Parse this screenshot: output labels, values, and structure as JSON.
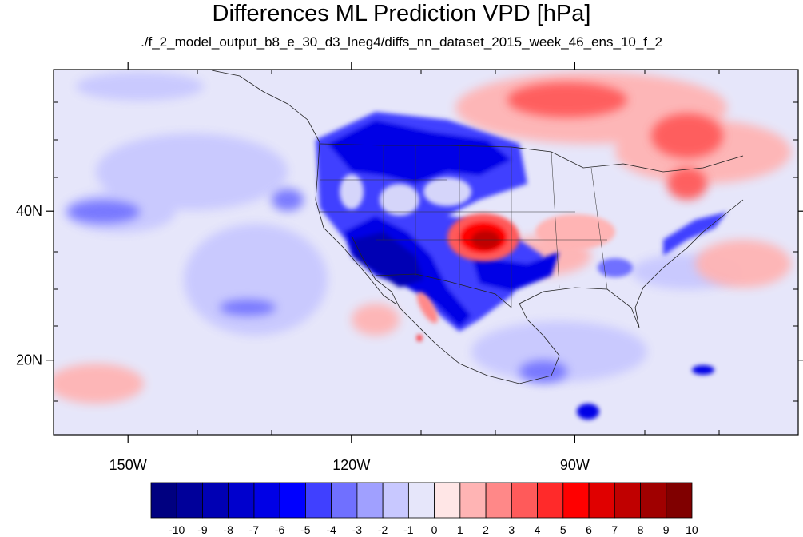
{
  "title": "Differences ML Prediction VPD [hPa]",
  "subtitle": "./f_2_model_output_b8_e_30_d3_lneg4/diffs_nn_dataset_2015_week_46_ens_10_f_2",
  "map": {
    "lon_range": [
      -160,
      -60
    ],
    "lat_range": [
      10,
      59
    ],
    "lon_ticks": [
      {
        "value": -150,
        "label": "150W"
      },
      {
        "value": -120,
        "label": "120W"
      },
      {
        "value": -90,
        "label": "90W"
      }
    ],
    "lat_ticks": [
      {
        "value": 40,
        "label": "40N"
      },
      {
        "value": 20,
        "label": "20N"
      }
    ],
    "background_color": "#e6e6fa"
  },
  "colorbar": {
    "labels": [
      "-10",
      "-9",
      "-8",
      "-7",
      "-6",
      "-5",
      "-4",
      "-3",
      "-2",
      "-1",
      "0",
      "1",
      "2",
      "3",
      "4",
      "5",
      "6",
      "7",
      "8",
      "9",
      "10"
    ],
    "colors": [
      "#000080",
      "#00009a",
      "#0000b4",
      "#0000cd",
      "#0000e6",
      "#0000ff",
      "#4040ff",
      "#7070ff",
      "#a0a0ff",
      "#c8c8ff",
      "#e6e6fa",
      "#ffe6e6",
      "#ffb4b4",
      "#ff8888",
      "#ff5a5a",
      "#ff2a2a",
      "#ff0000",
      "#e00000",
      "#c00000",
      "#a00000",
      "#800000"
    ]
  }
}
